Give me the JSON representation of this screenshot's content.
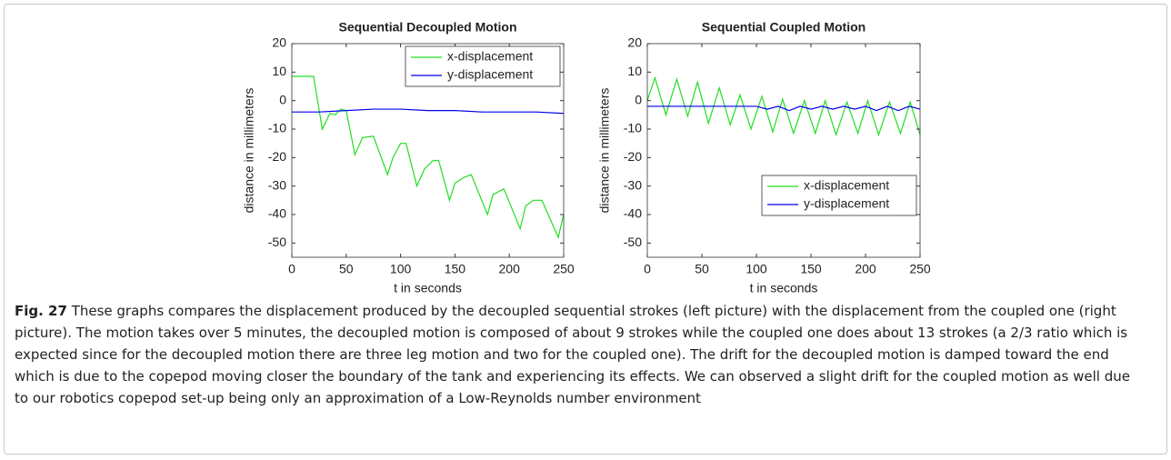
{
  "chart_data": [
    {
      "type": "line",
      "title": "Sequential Decoupled Motion",
      "x_label": "t in seconds",
      "y_label": "distance in millimeters",
      "xlim": [
        0,
        250
      ],
      "xticks": [
        0,
        50,
        100,
        150,
        200,
        250
      ],
      "ylim": [
        -55,
        20
      ],
      "yticks": [
        -50,
        -40,
        -30,
        -20,
        -10,
        0,
        10,
        20
      ],
      "legend": "top-right",
      "series": [
        {
          "name": "x-displacement",
          "color": "#22dd22",
          "x": [
            0,
            20,
            28,
            35,
            40,
            45,
            50,
            58,
            65,
            75,
            88,
            93,
            100,
            105,
            115,
            122,
            130,
            135,
            145,
            150,
            158,
            165,
            180,
            185,
            195,
            210,
            215,
            222,
            230,
            245,
            250
          ],
          "values": [
            8.5,
            8.5,
            -10,
            -4.5,
            -5,
            -3,
            -3.5,
            -19,
            -13,
            -12.5,
            -26,
            -20,
            -15,
            -15,
            -30,
            -24,
            -21,
            -21,
            -35,
            -29,
            -27,
            -26,
            -40,
            -33,
            -31,
            -45,
            -37,
            -35,
            -35,
            -48,
            -40
          ]
        },
        {
          "name": "y-displacement",
          "color": "#0000ee",
          "x": [
            0,
            25,
            50,
            75,
            100,
            125,
            150,
            175,
            200,
            225,
            250
          ],
          "values": [
            -4,
            -4,
            -3.5,
            -3,
            -3,
            -3.5,
            -3.5,
            -4,
            -4,
            -4,
            -4.5
          ]
        }
      ]
    },
    {
      "type": "line",
      "title": "Sequential Coupled Motion",
      "x_label": "t in seconds",
      "y_label": "distance in millimeters",
      "xlim": [
        0,
        250
      ],
      "xticks": [
        0,
        50,
        100,
        150,
        200,
        250
      ],
      "ylim": [
        -55,
        20
      ],
      "yticks": [
        -50,
        -40,
        -30,
        -20,
        -10,
        0,
        10,
        20
      ],
      "legend": "bottom-right",
      "series": [
        {
          "name": "x-displacement",
          "color": "#22dd22",
          "x": [
            0,
            7,
            17,
            27,
            37,
            46,
            56,
            66,
            76,
            85,
            95,
            105,
            115,
            124,
            134,
            144,
            154,
            163,
            173,
            183,
            193,
            202,
            212,
            222,
            232,
            241,
            250
          ],
          "values": [
            0,
            8,
            -5,
            7.5,
            -5.5,
            6.5,
            -8,
            4.5,
            -8.5,
            2,
            -10,
            1.5,
            -11,
            0.5,
            -11.5,
            0,
            -11.5,
            0,
            -12,
            -0.5,
            -11.5,
            0,
            -12,
            -0.5,
            -11.5,
            -0.5,
            -12
          ]
        },
        {
          "name": "y-displacement",
          "color": "#0000ee",
          "x": [
            0,
            50,
            100,
            110,
            120,
            130,
            140,
            150,
            160,
            170,
            180,
            190,
            200,
            210,
            220,
            230,
            240,
            250
          ],
          "values": [
            -2,
            -2,
            -2,
            -3,
            -2,
            -3.5,
            -2,
            -3,
            -2,
            -3,
            -2,
            -3,
            -2,
            -3.5,
            -2,
            -3.5,
            -2,
            -3
          ]
        }
      ]
    }
  ],
  "caption": {
    "label": "Fig. 27",
    "text": "These graphs compares the displacement produced by the decoupled sequential strokes (left picture) with the displacement from the coupled one (right picture). The motion takes over 5 minutes, the decoupled motion is composed of about 9 strokes while the coupled one does about 13 strokes (a 2/3 ratio which is expected since for the decoupled motion there are three leg motion and two for the coupled one). The drift for the decoupled motion is damped toward the end which is due to the copepod moving closer the boundary of the tank and experiencing its effects. We can observed a slight drift for the coupled motion as well due to our robotics copepod set-up being only an approximation of a Low-Reynolds number environment"
  }
}
